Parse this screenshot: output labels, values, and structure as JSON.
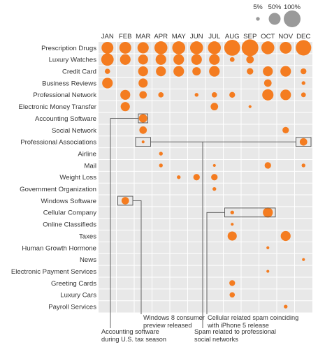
{
  "chart_data": {
    "type": "bubble-matrix",
    "accent_color": "#f47c20",
    "muted_color": "#9a9a9a",
    "grid_color": "#e8e8e8",
    "months": [
      "JAN",
      "FEB",
      "MAR",
      "APR",
      "MAY",
      "JUN",
      "JUL",
      "AUG",
      "SEP",
      "OCT",
      "NOV",
      "DEC"
    ],
    "categories": [
      "Prescription Drugs",
      "Luxury Watches",
      "Credit Card",
      "Business Reviews",
      "Professional Network",
      "Electronic Money Transfer",
      "Accounting Software",
      "Social Network",
      "Professional Associations",
      "Airline",
      "Mail",
      "Weight Loss",
      "Government Organization",
      "Windows Software",
      "Cellular Company",
      "Online Classifieds",
      "Taxes",
      "Human Growth Hormone",
      "News",
      "Electronic Payment Services",
      "Greeting Cards",
      "Luxury Cars",
      "Payroll Services"
    ],
    "values": [
      [
        50,
        50,
        45,
        60,
        60,
        60,
        60,
        90,
        100,
        60,
        50,
        85
      ],
      [
        55,
        40,
        35,
        40,
        40,
        40,
        40,
        8,
        20,
        0,
        0,
        0
      ],
      [
        10,
        0,
        35,
        35,
        40,
        25,
        40,
        0,
        15,
        35,
        40,
        12
      ],
      [
        40,
        0,
        30,
        0,
        0,
        0,
        0,
        0,
        0,
        20,
        0,
        5
      ],
      [
        0,
        35,
        20,
        10,
        0,
        5,
        10,
        12,
        0,
        45,
        40,
        8
      ],
      [
        0,
        30,
        0,
        0,
        0,
        0,
        20,
        0,
        3,
        0,
        0,
        0
      ],
      [
        0,
        0,
        25,
        0,
        0,
        0,
        0,
        0,
        0,
        0,
        0,
        0
      ],
      [
        0,
        0,
        20,
        0,
        0,
        0,
        0,
        0,
        0,
        0,
        15,
        0
      ],
      [
        0,
        0,
        3,
        0,
        0,
        0,
        0,
        0,
        0,
        0,
        0,
        20
      ],
      [
        0,
        0,
        0,
        5,
        0,
        0,
        0,
        0,
        0,
        0,
        0,
        0
      ],
      [
        0,
        0,
        0,
        5,
        0,
        0,
        3,
        0,
        0,
        15,
        0,
        5
      ],
      [
        0,
        0,
        0,
        0,
        5,
        15,
        15,
        0,
        0,
        0,
        0,
        0
      ],
      [
        0,
        0,
        0,
        0,
        0,
        0,
        5,
        0,
        0,
        0,
        0,
        0
      ],
      [
        0,
        20,
        0,
        0,
        0,
        0,
        0,
        0,
        0,
        0,
        0,
        0
      ],
      [
        0,
        0,
        0,
        0,
        0,
        0,
        0,
        5,
        0,
        35,
        0,
        0
      ],
      [
        0,
        0,
        0,
        0,
        0,
        0,
        0,
        3,
        0,
        0,
        0,
        0
      ],
      [
        0,
        0,
        0,
        0,
        0,
        0,
        0,
        30,
        0,
        0,
        35,
        0
      ],
      [
        0,
        0,
        0,
        0,
        0,
        0,
        0,
        0,
        0,
        3,
        0,
        0
      ],
      [
        0,
        0,
        0,
        0,
        0,
        0,
        0,
        0,
        0,
        0,
        0,
        3
      ],
      [
        0,
        0,
        0,
        0,
        0,
        0,
        0,
        0,
        0,
        3,
        0,
        0
      ],
      [
        0,
        0,
        0,
        0,
        0,
        0,
        0,
        12,
        0,
        0,
        0,
        0
      ],
      [
        0,
        0,
        0,
        0,
        0,
        0,
        0,
        10,
        0,
        0,
        0,
        0
      ],
      [
        0,
        0,
        0,
        0,
        0,
        0,
        0,
        0,
        0,
        0,
        5,
        0
      ]
    ],
    "legend": {
      "placement": "top-right",
      "labels": [
        "5%",
        "50%",
        "100%"
      ],
      "values": [
        5,
        50,
        100
      ]
    },
    "annotations": [
      {
        "text": [
          "Accounting software",
          "during U.S. tax season"
        ]
      },
      {
        "text": [
          "Windows 8 consumer",
          "preview released"
        ]
      },
      {
        "text": [
          "Spam related to professional",
          "social networks"
        ]
      },
      {
        "text": [
          "Cellular related spam coinciding",
          "with iPhone 5 release"
        ]
      }
    ]
  }
}
